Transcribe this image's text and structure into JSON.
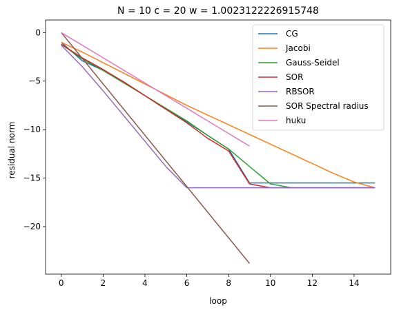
{
  "chart_data": {
    "type": "line",
    "title": "N = 10 c = 20 w = 1.0023122226915748",
    "xlabel": "loop",
    "ylabel": "residual norm",
    "xlim": [
      -0.75,
      15.75
    ],
    "ylim": [
      -24.9,
      1.3
    ],
    "xticks": [
      0,
      2,
      4,
      6,
      8,
      10,
      12,
      14
    ],
    "yticks": [
      0,
      -5,
      -10,
      -15,
      -20
    ],
    "grid": false,
    "legend_position": "top-right",
    "series": [
      {
        "name": "CG",
        "color": "#1f77b4",
        "x": [
          0,
          1,
          2,
          3,
          4,
          5,
          6,
          7,
          8,
          9,
          10,
          11,
          12,
          13,
          14,
          15
        ],
        "y": [
          -1.0,
          -2.9,
          -3.9,
          -5.1,
          -6.5,
          -7.9,
          -9.2,
          -10.6,
          -12.0,
          -15.5,
          -15.5,
          -15.5,
          -15.5,
          -15.5,
          -15.5,
          -15.5
        ]
      },
      {
        "name": "Jacobi",
        "color": "#ff7f0e",
        "x": [
          0,
          1,
          2,
          3,
          4,
          5,
          6,
          7,
          8,
          9,
          10,
          11,
          12,
          13,
          14,
          15
        ],
        "y": [
          -1.0,
          -2.0,
          -3.1,
          -4.2,
          -5.3,
          -6.4,
          -7.5,
          -8.5,
          -9.5,
          -10.5,
          -11.5,
          -12.5,
          -13.5,
          -14.5,
          -15.4,
          -16.0
        ]
      },
      {
        "name": "Gauss-Seidel",
        "color": "#2ca02c",
        "x": [
          0,
          1,
          2,
          3,
          4,
          5,
          6,
          7,
          8,
          9,
          10,
          11,
          12,
          13,
          14,
          15
        ],
        "y": [
          -1.2,
          -2.7,
          -3.9,
          -5.2,
          -6.5,
          -7.8,
          -9.1,
          -10.6,
          -12.0,
          -13.8,
          -15.6,
          -16.0,
          -16.0,
          -16.0,
          -16.0,
          -16.0
        ]
      },
      {
        "name": "SOR",
        "color": "#d62728",
        "x": [
          0,
          1,
          2,
          3,
          4,
          5,
          6,
          7,
          8,
          9,
          10,
          11,
          12,
          13,
          14,
          15
        ],
        "y": [
          -1.2,
          -2.6,
          -3.8,
          -5.1,
          -6.5,
          -7.9,
          -9.3,
          -10.9,
          -12.2,
          -15.6,
          -16.0,
          -16.0,
          -16.0,
          -16.0,
          -16.0,
          -16.0
        ]
      },
      {
        "name": "RBSOR",
        "color": "#9467bd",
        "x": [
          0,
          1,
          2,
          3,
          4,
          5,
          6,
          7,
          8,
          9,
          10,
          11,
          12,
          13,
          14,
          15
        ],
        "y": [
          -1.3,
          -3.5,
          -6.0,
          -8.6,
          -11.2,
          -13.8,
          -16.0,
          -16.0,
          -16.0,
          -16.0,
          -16.0,
          -16.0,
          -16.0,
          -16.0,
          -16.0,
          -16.0
        ]
      },
      {
        "name": "SOR Spectral radius",
        "color": "#8c564b",
        "x": [
          0,
          9
        ],
        "y": [
          0.0,
          -23.8
        ]
      },
      {
        "name": "huku",
        "color": "#e377c2",
        "x": [
          0,
          9
        ],
        "y": [
          0.0,
          -11.7
        ]
      }
    ]
  }
}
